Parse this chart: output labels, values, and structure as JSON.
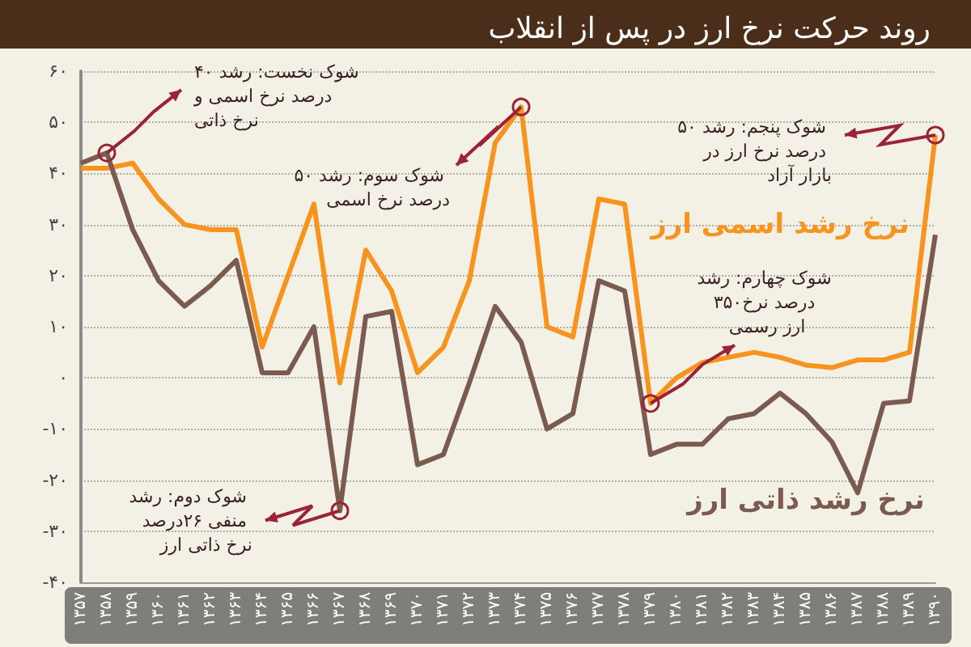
{
  "chart_data": {
    "type": "line",
    "title": "روند حرکت نرخ ارز در پس از انقلاب",
    "categories": [
      "۱۳۵۷",
      "۱۳۵۸",
      "۱۳۵۹",
      "۱۳۶۰",
      "۱۳۶۱",
      "۱۳۶۲",
      "۱۳۶۳",
      "۱۳۶۴",
      "۱۳۶۵",
      "۱۳۶۶",
      "۱۳۶۷",
      "۱۳۶۸",
      "۱۳۶۹",
      "۱۳۷۰",
      "۱۳۷۱",
      "۱۳۷۲",
      "۱۳۷۳",
      "۱۳۷۴",
      "۱۳۷۵",
      "۱۳۷۶",
      "۱۳۷۷",
      "۱۳۷۸",
      "۱۳۷۹",
      "۱۳۸۰",
      "۱۳۸۱",
      "۱۳۸۲",
      "۱۳۸۳",
      "۱۳۸۴",
      "۱۳۸۵",
      "۱۳۸۶",
      "۱۳۸۷",
      "۱۳۸۸",
      "۱۳۸۹",
      "۱۳۹۰"
    ],
    "series": [
      {
        "name": "نرخ رشد اسمی ارز",
        "color": "#f7941d",
        "values": [
          41,
          41,
          42,
          35,
          30,
          29,
          29,
          6,
          20,
          34,
          -1,
          25,
          17,
          1,
          6,
          19,
          46,
          53,
          10,
          8,
          35,
          34,
          -5,
          0,
          3,
          4,
          5,
          4,
          2.5,
          2,
          3.5,
          3.5,
          5,
          47.5
        ]
      },
      {
        "name": "نرخ رشد ذاتی ارز",
        "color": "#7b5a4f",
        "values": [
          42,
          44,
          29,
          19,
          14,
          18,
          23,
          1,
          1,
          10,
          -26,
          12,
          13,
          -17,
          -15,
          -1,
          14,
          7,
          -10,
          -7,
          19,
          17,
          -15,
          -13,
          -13,
          -8,
          -7,
          -3,
          -7,
          -12.5,
          -22.5,
          -5,
          -4.5,
          28
        ]
      }
    ],
    "ylim": [
      -40,
      60
    ],
    "yticks": [
      {
        "value": -40,
        "label": "-۴۰"
      },
      {
        "value": -30,
        "label": "-۳۰"
      },
      {
        "value": -20,
        "label": "-۲۰"
      },
      {
        "value": -10,
        "label": "-۱۰"
      },
      {
        "value": 0,
        "label": "۰"
      },
      {
        "value": 10,
        "label": "۱۰"
      },
      {
        "value": 20,
        "label": "۲۰"
      },
      {
        "value": 30,
        "label": "۳۰"
      },
      {
        "value": 40,
        "label": "۴۰"
      },
      {
        "value": 50,
        "label": "۵۰"
      },
      {
        "value": 60,
        "label": "۶۰"
      }
    ],
    "grid": "y",
    "legend": false,
    "marker": "none",
    "line_style": "solid",
    "annotations": [
      {
        "text": "شوک نخست: رشد ۴۰ درصد نرخ اسمی و نرخ ذاتی",
        "x": "۱۳۵۸",
        "y": 44
      },
      {
        "text": "شوک دوم: رشد منفی ۲۶درصد نرخ ذاتی ارز",
        "x": "۱۳۶۷",
        "y": -26
      },
      {
        "text": "شوک سوم: رشد ۵۰ درصد نرخ اسمی",
        "x": "۱۳۷۴",
        "y": 53
      },
      {
        "text": "شوک چهارم: رشد ۳۵۰درصد نرخ ارز رسمی",
        "x": "۱۳۷۹",
        "y": -5
      },
      {
        "text": "شوک پنجم: رشد ۵۰ درصد نرخ ارز در بازار آزاد",
        "x": "۱۳۹۰",
        "y": 47.5
      }
    ]
  }
}
